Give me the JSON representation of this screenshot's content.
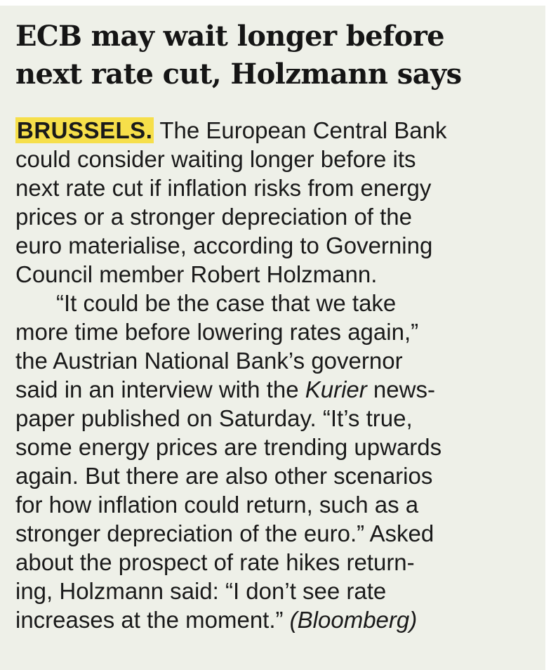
{
  "headline": {
    "lines": [
      "ECB may wait longer before",
      "next rate cut, Holzmann says"
    ]
  },
  "body": {
    "dateline": "BRUSSELS.",
    "paragraphs": [
      {
        "lines": [
          [
            "The European Central Bank"
          ],
          [
            "could consider waiting longer before its"
          ],
          [
            "next rate cut if inflation risks from energy"
          ],
          [
            "prices or a stronger depreciation of the"
          ],
          [
            "euro materialise, according to Governing"
          ],
          [
            "Council member Robert Holzmann."
          ]
        ]
      },
      {
        "lines": [
          [
            "“It could be the case that we take"
          ],
          [
            "more time before lowering rates again,”"
          ],
          [
            "the Austrian National Bank’s governor"
          ],
          [
            "said in an interview with the ",
            {
              "text": "Kurier",
              "italic": true
            },
            " news-"
          ],
          [
            "paper published on Saturday. “It’s true,"
          ],
          [
            "some energy prices are trending upwards"
          ],
          [
            "again. But there are also other scenarios"
          ],
          [
            "for how inflation could return, such as a"
          ],
          [
            "stronger depreciation of the euro.” Asked"
          ],
          [
            "about the prospect of rate hikes return-"
          ],
          [
            "ing, Holzmann said: “I don’t see rate"
          ],
          [
            "increases at the moment.” ",
            {
              "text": "(Bloomberg)",
              "italic": true
            }
          ]
        ]
      }
    ]
  }
}
